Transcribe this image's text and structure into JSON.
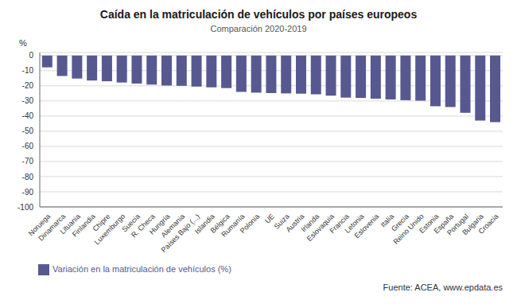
{
  "chart_data": {
    "type": "bar",
    "title": "Caída en la matriculación de vehículos por países europeos",
    "subtitle": "Comparación 2020-2019",
    "ylabel": "%",
    "categories": [
      "Noruega",
      "Dinamarca",
      "Lituania",
      "Finlandia",
      "Chipre",
      "Luxemburgo",
      "Suecia",
      "R. Checa",
      "Hungría",
      "Alemania",
      "Países Bajo (...)",
      "Islandia",
      "Bélgica",
      "Rumanía",
      "Polonia",
      "UE",
      "Suiza",
      "Austria",
      "Irlanda",
      "Eslovaquia",
      "Francia",
      "Letonia",
      "Eslovenia",
      "Italia",
      "Grecia",
      "Reino Unido",
      "Estonia",
      "España",
      "Portugal",
      "Bulgaria",
      "Croacia"
    ],
    "series": [
      {
        "name": "Variación en la matriculación de vehículos (%)",
        "color": "#585891",
        "values": [
          -7.8,
          -13.5,
          -15.2,
          -16.5,
          -17.0,
          -17.8,
          -18.5,
          -19.2,
          -19.8,
          -20.0,
          -20.5,
          -21.0,
          -21.5,
          -24.0,
          -24.5,
          -24.8,
          -25.0,
          -25.2,
          -25.6,
          -26.5,
          -27.8,
          -28.0,
          -28.5,
          -29.0,
          -29.5,
          -29.8,
          -33.5,
          -34.0,
          -37.8,
          -43.0,
          -44.0
        ]
      }
    ],
    "ylim": [
      -100,
      2
    ],
    "yticks": [
      0,
      -10,
      -20,
      -30,
      -40,
      -50,
      -60,
      -70,
      -80,
      -90,
      -100
    ],
    "grid": true,
    "legend": "bottom",
    "annotations": [
      "Fuente: ACEA, www.epdata.es"
    ]
  }
}
